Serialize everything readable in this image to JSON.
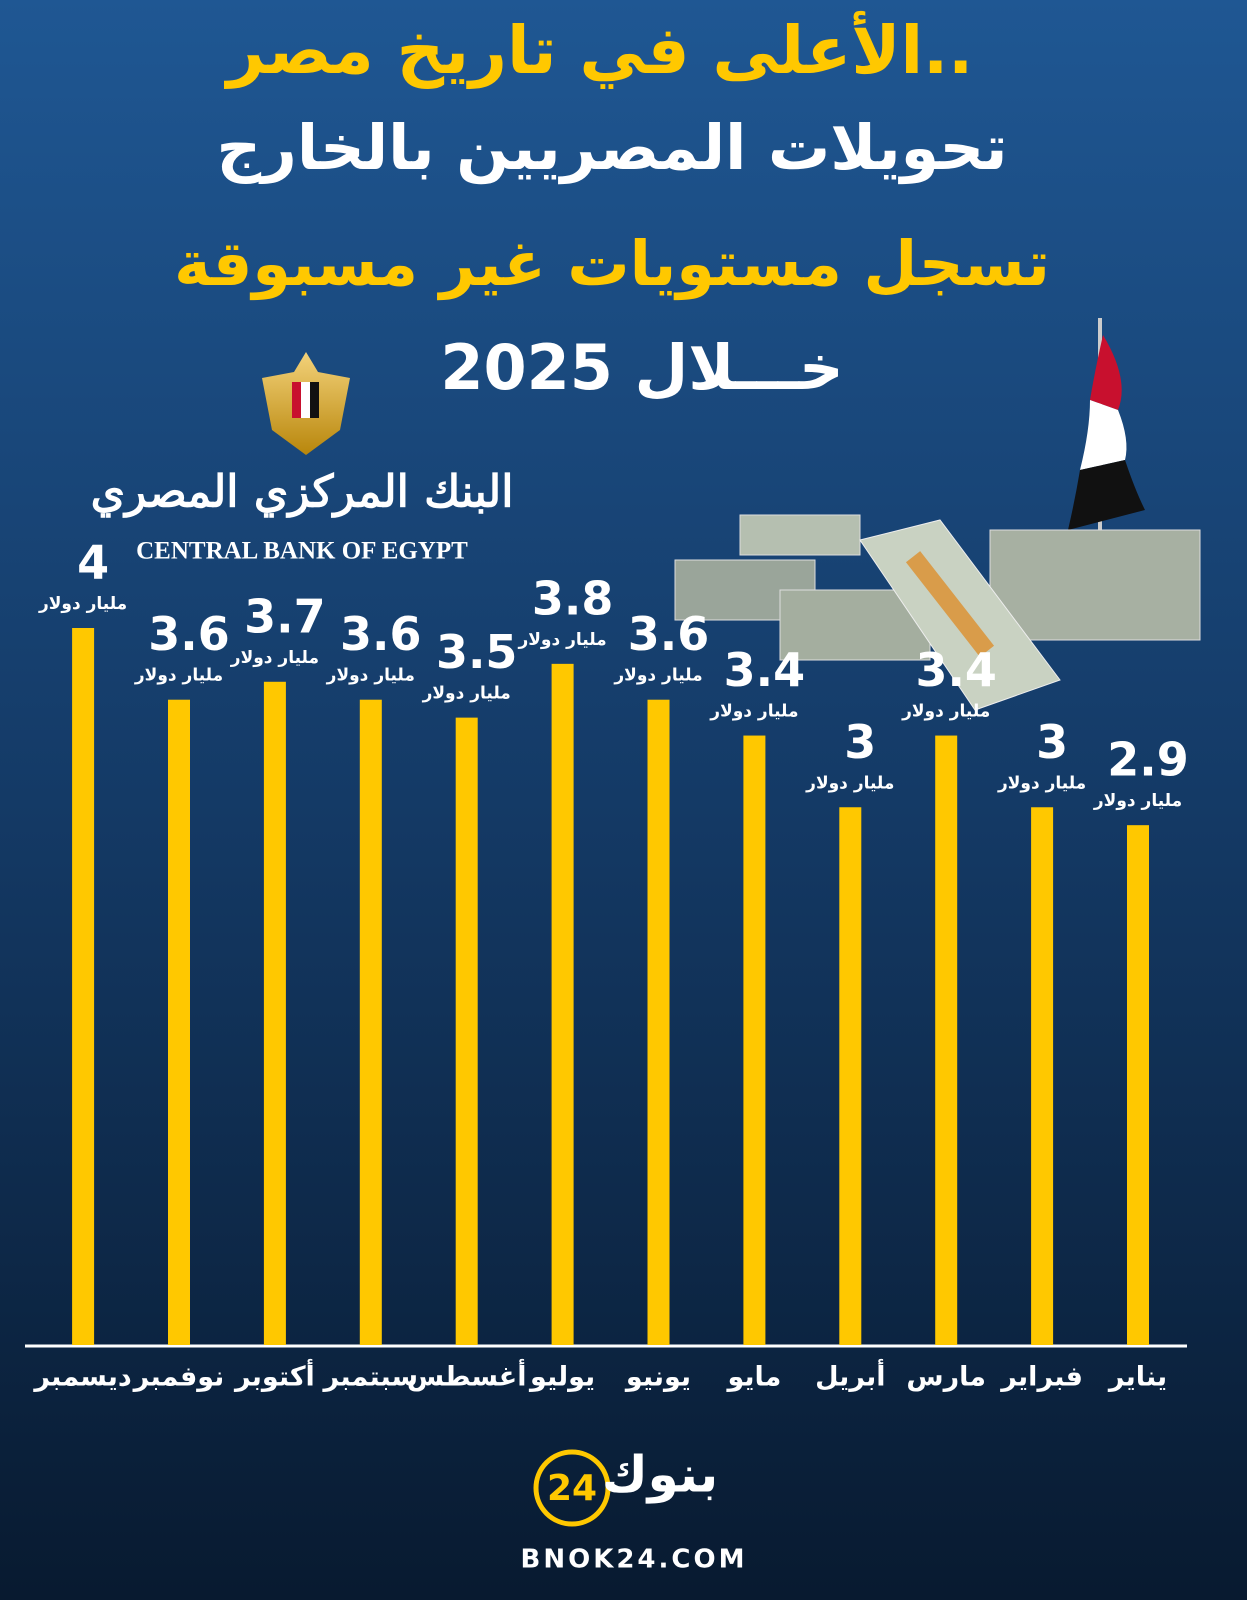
{
  "chart_data": {
    "type": "bar",
    "title": "الأعلى في تاريخ مصر..",
    "subtitle": [
      "تحويلات المصريين بالخارج",
      "تسجل مستويات غير مسبوقة",
      "خـــلال 2025"
    ],
    "categories": [
      "يناير",
      "فبراير",
      "مارس",
      "أبريل",
      "مايو",
      "يونيو",
      "يوليو",
      "أغسطس",
      "سبتمبر",
      "أكتوبر",
      "نوفمبر",
      "ديسمبر"
    ],
    "values": [
      2.9,
      3,
      3.4,
      3,
      3.4,
      3.6,
      3.8,
      3.5,
      3.6,
      3.7,
      3.6,
      4
    ],
    "unit_label": "مليار دولار",
    "color": "#ffc800",
    "ylim": [
      0,
      4
    ],
    "logo": {
      "arabic": "البنك المركزي المصري",
      "english": "CENTRAL BANK OF EGYPT"
    },
    "brand": {
      "name": "بنوك",
      "number": "24",
      "site": "BNOK24.COM"
    }
  }
}
